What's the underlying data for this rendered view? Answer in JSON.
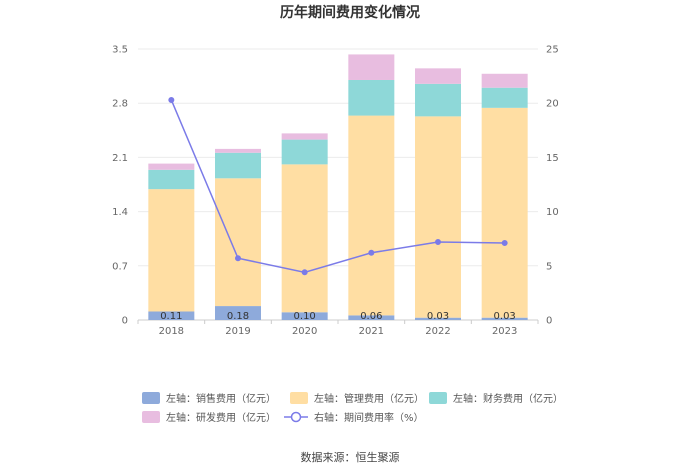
{
  "chart_data": {
    "type": "bar",
    "title": "历年期间费用变化情况",
    "categories": [
      "2018",
      "2019",
      "2020",
      "2021",
      "2022",
      "2023"
    ],
    "left_axis": {
      "ylim": [
        0,
        3.5
      ],
      "ticks": [
        "0",
        "0.7",
        "1.4",
        "2.1",
        "2.8",
        "3.5"
      ]
    },
    "right_axis": {
      "ylim": [
        0,
        25
      ],
      "ticks": [
        "0",
        "5",
        "10",
        "15",
        "20",
        "25"
      ]
    },
    "series": [
      {
        "name": "左轴：销售费用（亿元）",
        "type": "bar",
        "axis": "left",
        "color": "#8eaadb",
        "values": [
          0.11,
          0.18,
          0.1,
          0.06,
          0.03,
          0.03
        ],
        "labels": [
          "0.11",
          "0.18",
          "0.10",
          "0.06",
          "0.03",
          "0.03"
        ]
      },
      {
        "name": "左轴：管理费用（亿元）",
        "type": "bar",
        "axis": "left",
        "color": "#ffdea3",
        "values": [
          1.58,
          1.65,
          1.91,
          2.58,
          2.6,
          2.71
        ]
      },
      {
        "name": "左轴：财务费用（亿元）",
        "type": "bar",
        "axis": "left",
        "color": "#8ed8d8",
        "values": [
          0.25,
          0.33,
          0.32,
          0.46,
          0.42,
          0.26
        ]
      },
      {
        "name": "左轴：研发费用（亿元）",
        "type": "bar",
        "axis": "left",
        "color": "#e8bde0",
        "values": [
          0.08,
          0.05,
          0.08,
          0.33,
          0.2,
          0.18
        ]
      },
      {
        "name": "右轴：期间费用率（%）",
        "type": "line",
        "axis": "right",
        "color": "#7b7be8",
        "values": [
          20.3,
          5.7,
          4.4,
          6.2,
          7.2,
          7.1
        ]
      }
    ],
    "source": "数据来源：恒生聚源"
  }
}
